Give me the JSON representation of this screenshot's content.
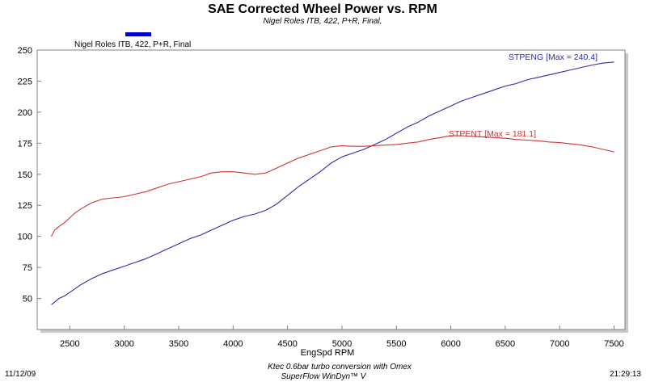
{
  "chart_data": {
    "type": "line",
    "title": "SAE Corrected Wheel Power vs. RPM",
    "subtitle": "Nigel Roles ITB, 422, P+R, Final,",
    "xlabel": "EngSpd  RPM",
    "ylabel": "",
    "xlim": [
      2200,
      7600
    ],
    "ylim": [
      25,
      250
    ],
    "x_ticks": [
      2500,
      3000,
      3500,
      4000,
      4500,
      5000,
      5500,
      6000,
      6500,
      7000,
      7500
    ],
    "y_ticks": [
      50,
      75,
      100,
      125,
      150,
      175,
      200,
      225,
      250
    ],
    "grid": false,
    "legend": {
      "position": "top-left",
      "entries": [
        {
          "name": "Nigel Roles ITB, 422, P+R, Final",
          "color": "#0000cc"
        }
      ]
    },
    "series": [
      {
        "name": "STPENG",
        "annotation": "STPENG [Max = 240.4]",
        "color": "#2b2bb0",
        "x": [
          2330,
          2360,
          2400,
          2450,
          2500,
          2550,
          2600,
          2700,
          2800,
          2900,
          3000,
          3100,
          3200,
          3300,
          3400,
          3500,
          3600,
          3700,
          3800,
          3900,
          4000,
          4100,
          4200,
          4300,
          4400,
          4500,
          4600,
          4700,
          4800,
          4900,
          5000,
          5100,
          5200,
          5300,
          5400,
          5500,
          5600,
          5700,
          5800,
          5900,
          6000,
          6100,
          6200,
          6300,
          6400,
          6500,
          6600,
          6700,
          6800,
          6900,
          7000,
          7100,
          7200,
          7300,
          7400,
          7500
        ],
        "values": [
          45,
          47,
          50,
          52,
          55,
          58,
          61,
          66,
          70,
          73,
          76,
          79,
          82,
          86,
          90,
          94,
          98,
          101,
          105,
          109,
          113,
          116,
          118,
          121,
          126,
          133,
          140,
          146,
          152,
          159,
          164,
          167,
          170,
          174,
          178,
          183,
          188,
          192,
          197,
          201,
          205,
          209,
          212,
          215,
          218,
          221,
          223,
          226,
          228,
          230,
          232,
          234,
          236,
          238,
          239.5,
          240.4
        ]
      },
      {
        "name": "STPENT",
        "annotation": "STPENT [Max = 181.1]",
        "color": "#cc3333",
        "x": [
          2330,
          2360,
          2400,
          2450,
          2500,
          2550,
          2600,
          2700,
          2800,
          2900,
          3000,
          3100,
          3200,
          3300,
          3400,
          3500,
          3600,
          3700,
          3800,
          3900,
          4000,
          4100,
          4200,
          4300,
          4400,
          4500,
          4600,
          4700,
          4800,
          4900,
          5000,
          5100,
          5200,
          5300,
          5400,
          5500,
          5600,
          5700,
          5800,
          5900,
          6000,
          6100,
          6200,
          6300,
          6400,
          6500,
          6600,
          6700,
          6800,
          6900,
          7000,
          7100,
          7200,
          7300,
          7400,
          7500
        ],
        "values": [
          100,
          105,
          108,
          111,
          115,
          119,
          122,
          127,
          130,
          131,
          132,
          134,
          136,
          139,
          142,
          144,
          146,
          148,
          151,
          152,
          152,
          151,
          150,
          151,
          155,
          159,
          163,
          166,
          169,
          172,
          173,
          172.5,
          172.5,
          173,
          173.5,
          174,
          175,
          176,
          178,
          179.5,
          181,
          181.1,
          180.5,
          180,
          179.5,
          179,
          178,
          177.5,
          177,
          176,
          175.5,
          174.5,
          173.5,
          172,
          170,
          168
        ]
      }
    ]
  },
  "footer": {
    "left_date": "11/12/09",
    "center_line1": "Ktec 0.6bar turbo conversion with Omex",
    "center_line2": "SuperFlow WinDyn™ V",
    "right_time": "21:29:13"
  }
}
